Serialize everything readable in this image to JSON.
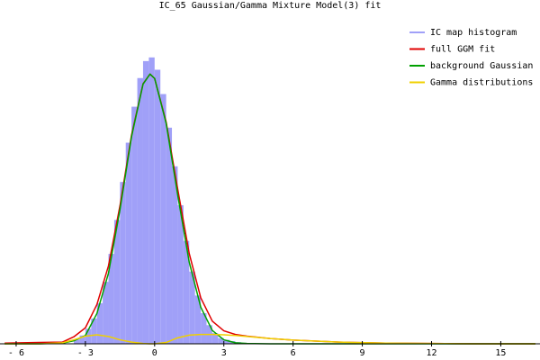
{
  "chart_data": {
    "type": "histogram",
    "title": "IC_65 Gaussian/Gamma Mixture Model(3) fit",
    "xlim": [
      -6.7,
      16.7
    ],
    "ylim": [
      0,
      100
    ],
    "xticks": [
      {
        "value": -6,
        "label": "- 6"
      },
      {
        "value": -3,
        "label": "- 3"
      },
      0,
      3,
      6,
      9,
      12,
      15
    ],
    "legend": "upper right",
    "histogram": {
      "name": "IC map histogram",
      "color": "#a0a0f8",
      "bins": [
        -3.5,
        -3.25,
        -3.0,
        -2.75,
        -2.5,
        -2.25,
        -2.0,
        -1.75,
        -1.5,
        -1.25,
        -1.0,
        -0.75,
        -0.5,
        -0.25,
        0.0,
        0.25,
        0.5,
        0.75,
        1.0,
        1.25,
        1.5,
        1.75,
        2.0,
        2.25,
        2.5,
        2.75,
        3.0,
        3.25,
        3.5,
        3.75,
        4.0
      ],
      "values": [
        1.3,
        2.5,
        4.5,
        7.6,
        12.2,
        18.6,
        27,
        37.2,
        48.6,
        60.4,
        71.2,
        79.8,
        84.9,
        86,
        82.3,
        75,
        64.9,
        53.3,
        41.6,
        30.9,
        21.7,
        14.5,
        9.2,
        5.6,
        3.2,
        1.7,
        1.2,
        0.8,
        0.5,
        0.3
      ]
    },
    "x": [
      -6.5,
      -5,
      -4,
      -3.5,
      -3,
      -2.5,
      -2,
      -1.5,
      -1,
      -0.5,
      -0.2,
      0,
      0.5,
      1,
      1.5,
      2,
      2.5,
      3,
      3.5,
      4,
      5,
      6,
      8,
      10,
      12,
      14,
      16.5
    ],
    "series": [
      {
        "name": "full GGM fit",
        "color": "#e00000",
        "values": [
          0.2,
          0.4,
          0.5,
          2.1,
          4.8,
          11.8,
          23.4,
          41.5,
          62.7,
          78.1,
          81,
          79.7,
          66.6,
          46.5,
          27.1,
          13.8,
          6.8,
          3.9,
          2.8,
          2.3,
          1.6,
          1.1,
          0.5,
          0.2,
          0.1,
          0,
          0
        ]
      },
      {
        "name": "background Gaussian",
        "color": "#00a000",
        "values": [
          0,
          0,
          0.2,
          0.9,
          2.5,
          9.1,
          21.2,
          40.3,
          62.2,
          78,
          81,
          79.7,
          66.2,
          44.7,
          24.5,
          11,
          4,
          1.2,
          0.3,
          0.1,
          0,
          0,
          0,
          0,
          0,
          0,
          0
        ]
      },
      {
        "name": "Gamma distributions",
        "color": "#f0d000",
        "values": [
          0,
          0,
          0.3,
          1.2,
          2.3,
          2.7,
          2.2,
          1.2,
          0.5,
          0.1,
          0,
          0,
          0.4,
          1.8,
          2.6,
          2.8,
          2.8,
          2.7,
          2.5,
          2.2,
          1.6,
          1.1,
          0.5,
          0.2,
          0.1,
          0,
          0
        ]
      }
    ]
  }
}
